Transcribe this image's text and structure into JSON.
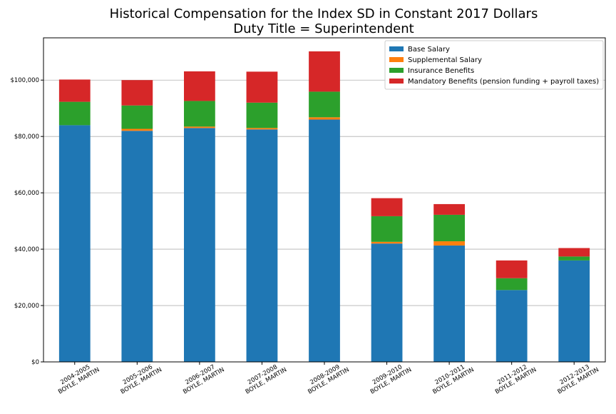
{
  "chart_data": {
    "type": "bar",
    "stacked": true,
    "title": "Historical Compensation for the Index SD in Constant 2017 Dollars",
    "subtitle": "Duty Title = Superintendent",
    "xlabel": "",
    "ylabel": "",
    "ylim": [
      0,
      115000
    ],
    "yticks": [
      0,
      20000,
      40000,
      60000,
      80000,
      100000
    ],
    "ytick_labels": [
      "$0",
      "$20,000",
      "$40,000",
      "$60,000",
      "$80,000",
      "$100,000"
    ],
    "grid": "horizontal",
    "legend_position": "top-right",
    "categories": [
      [
        "2004-2005",
        "BOYLE, MARTIN"
      ],
      [
        "2005-2006",
        "BOYLE, MARTIN"
      ],
      [
        "2006-2007",
        "BOYLE, MARTIN"
      ],
      [
        "2007-2008",
        "BOYLE, MARTIN"
      ],
      [
        "2008-2009",
        "BOYLE, MARTIN"
      ],
      [
        "2009-2010",
        "BOYLE, MARTIN"
      ],
      [
        "2010-2011",
        "BOYLE, MARTIN"
      ],
      [
        "2011-2012",
        "BOYLE, MARTIN"
      ],
      [
        "2012-2013",
        "BOYLE, MARTIN"
      ]
    ],
    "series": [
      {
        "name": "Base Salary",
        "color": "#1f77b4",
        "values": [
          84000,
          82000,
          83000,
          82500,
          86000,
          42000,
          41300,
          25500,
          36000
        ]
      },
      {
        "name": "Supplemental Salary",
        "color": "#ff7f0e",
        "values": [
          0,
          700,
          500,
          500,
          800,
          600,
          1500,
          0,
          0
        ]
      },
      {
        "name": "Insurance Benefits",
        "color": "#2ca02c",
        "values": [
          8300,
          8300,
          9100,
          9000,
          9100,
          9100,
          9400,
          4200,
          1400
        ]
      },
      {
        "name": "Mandatory Benefits (pension funding + payroll taxes)",
        "color": "#d62728",
        "values": [
          7900,
          9000,
          10500,
          11000,
          14300,
          6400,
          3800,
          6300,
          3000
        ]
      }
    ]
  }
}
